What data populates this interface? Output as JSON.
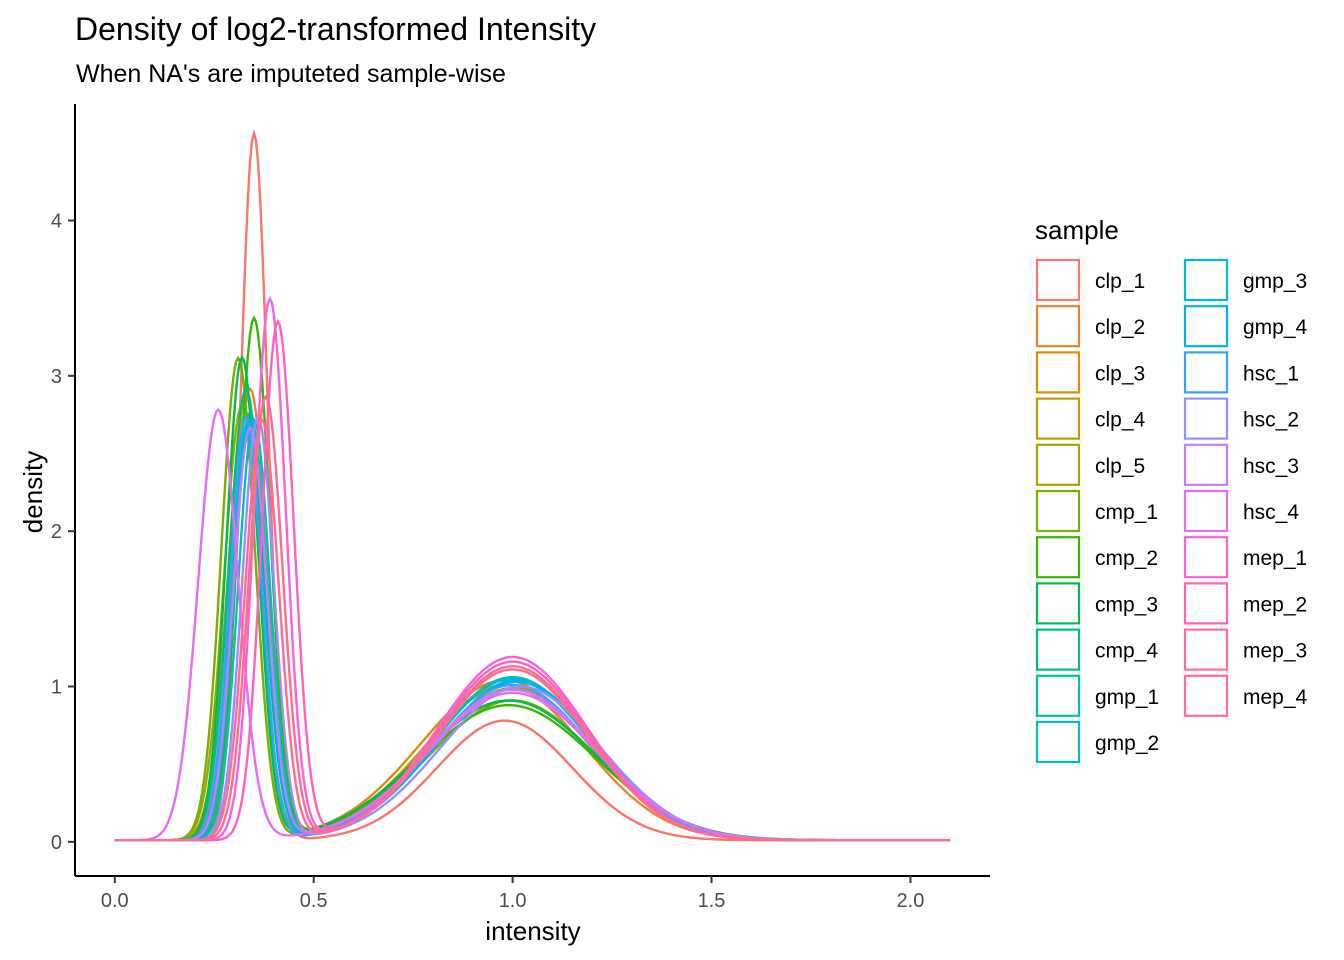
{
  "chart_data": {
    "type": "line",
    "title": "Density of log2-transformed Intensity",
    "subtitle": "When NA's are imputeted sample-wise",
    "xlabel": "intensity",
    "ylabel": "density",
    "xlim": [
      -0.1,
      2.2
    ],
    "ylim": [
      -0.22,
      4.75
    ],
    "xticks": [
      "0.0",
      "0.5",
      "1.0",
      "1.5",
      "2.0"
    ],
    "yticks": [
      "0",
      "1",
      "2",
      "3",
      "4"
    ],
    "grid": false,
    "legend_title": "sample",
    "legend_position": "right",
    "series": [
      {
        "name": "clp_1",
        "color": "#F8766D",
        "p1": {
          "mu": 0.35,
          "sd": 0.035,
          "h": 4.55
        },
        "p2": {
          "mu": 0.98,
          "sd": 0.17,
          "h": 0.77
        }
      },
      {
        "name": "clp_2",
        "color": "#EA8331",
        "p1": {
          "mu": 0.34,
          "sd": 0.045,
          "h": 2.9
        },
        "p2": {
          "mu": 0.98,
          "sd": 0.2,
          "h": 1.0
        }
      },
      {
        "name": "clp_3",
        "color": "#D89000",
        "p1": {
          "mu": 0.33,
          "sd": 0.045,
          "h": 2.85
        },
        "p2": {
          "mu": 0.98,
          "sd": 0.21,
          "h": 1.03
        }
      },
      {
        "name": "clp_4",
        "color": "#C09B00",
        "p1": {
          "mu": 0.33,
          "sd": 0.046,
          "h": 2.75
        },
        "p2": {
          "mu": 0.99,
          "sd": 0.21,
          "h": 1.0
        }
      },
      {
        "name": "clp_5",
        "color": "#A3A500",
        "p1": {
          "mu": 0.32,
          "sd": 0.045,
          "h": 2.8
        },
        "p2": {
          "mu": 1.0,
          "sd": 0.2,
          "h": 0.98
        }
      },
      {
        "name": "cmp_1",
        "color": "#7CAE00",
        "p1": {
          "mu": 0.31,
          "sd": 0.042,
          "h": 3.1
        },
        "p2": {
          "mu": 1.0,
          "sd": 0.21,
          "h": 0.9
        }
      },
      {
        "name": "cmp_2",
        "color": "#39B600",
        "p1": {
          "mu": 0.35,
          "sd": 0.04,
          "h": 3.35
        },
        "p2": {
          "mu": 0.99,
          "sd": 0.22,
          "h": 0.87
        }
      },
      {
        "name": "cmp_3",
        "color": "#00BB4E",
        "p1": {
          "mu": 0.32,
          "sd": 0.04,
          "h": 3.1
        },
        "p2": {
          "mu": 0.99,
          "sd": 0.22,
          "h": 0.9
        }
      },
      {
        "name": "cmp_4",
        "color": "#00BF7D",
        "p1": {
          "mu": 0.33,
          "sd": 0.043,
          "h": 2.9
        },
        "p2": {
          "mu": 1.0,
          "sd": 0.21,
          "h": 0.97
        }
      },
      {
        "name": "gmp_1",
        "color": "#00C1A3",
        "p1": {
          "mu": 0.34,
          "sd": 0.042,
          "h": 2.75
        },
        "p2": {
          "mu": 1.0,
          "sd": 0.2,
          "h": 1.05
        }
      },
      {
        "name": "gmp_2",
        "color": "#00BFC4",
        "p1": {
          "mu": 0.35,
          "sd": 0.04,
          "h": 2.7
        },
        "p2": {
          "mu": 1.0,
          "sd": 0.2,
          "h": 1.04
        }
      },
      {
        "name": "gmp_3",
        "color": "#00BAE0",
        "p1": {
          "mu": 0.33,
          "sd": 0.04,
          "h": 2.65
        },
        "p2": {
          "mu": 1.01,
          "sd": 0.2,
          "h": 1.02
        }
      },
      {
        "name": "gmp_4",
        "color": "#00B0F6",
        "p1": {
          "mu": 0.34,
          "sd": 0.04,
          "h": 2.7
        },
        "p2": {
          "mu": 1.01,
          "sd": 0.2,
          "h": 1.03
        }
      },
      {
        "name": "hsc_1",
        "color": "#35A2FF",
        "p1": {
          "mu": 0.33,
          "sd": 0.04,
          "h": 2.72
        },
        "p2": {
          "mu": 1.0,
          "sd": 0.2,
          "h": 1.0
        }
      },
      {
        "name": "hsc_2",
        "color": "#9590FF",
        "p1": {
          "mu": 0.36,
          "sd": 0.04,
          "h": 2.72
        },
        "p2": {
          "mu": 1.02,
          "sd": 0.2,
          "h": 0.99
        }
      },
      {
        "name": "hsc_3",
        "color": "#C77CFF",
        "p1": {
          "mu": 0.34,
          "sd": 0.042,
          "h": 2.65
        },
        "p2": {
          "mu": 1.0,
          "sd": 0.21,
          "h": 0.97
        }
      },
      {
        "name": "hsc_4",
        "color": "#E76BF3",
        "p1": {
          "mu": 0.26,
          "sd": 0.05,
          "h": 2.77
        },
        "p2": {
          "mu": 1.0,
          "sd": 0.21,
          "h": 0.95
        }
      },
      {
        "name": "mep_1",
        "color": "#FA62DB",
        "p1": {
          "mu": 0.39,
          "sd": 0.04,
          "h": 3.48
        },
        "p2": {
          "mu": 1.0,
          "sd": 0.19,
          "h": 1.18
        }
      },
      {
        "name": "mep_2",
        "color": "#FF62BC",
        "p1": {
          "mu": 0.41,
          "sd": 0.04,
          "h": 3.33
        },
        "p2": {
          "mu": 1.0,
          "sd": 0.19,
          "h": 1.15
        }
      },
      {
        "name": "mep_3",
        "color": "#FF6C91",
        "p1": {
          "mu": 0.38,
          "sd": 0.042,
          "h": 2.85
        },
        "p2": {
          "mu": 1.0,
          "sd": 0.19,
          "h": 1.12
        }
      },
      {
        "name": "mep_4",
        "color": "#FF6C91",
        "p1": {
          "mu": 0.37,
          "sd": 0.042,
          "h": 2.7
        },
        "p2": {
          "mu": 1.0,
          "sd": 0.19,
          "h": 1.1
        }
      }
    ]
  }
}
